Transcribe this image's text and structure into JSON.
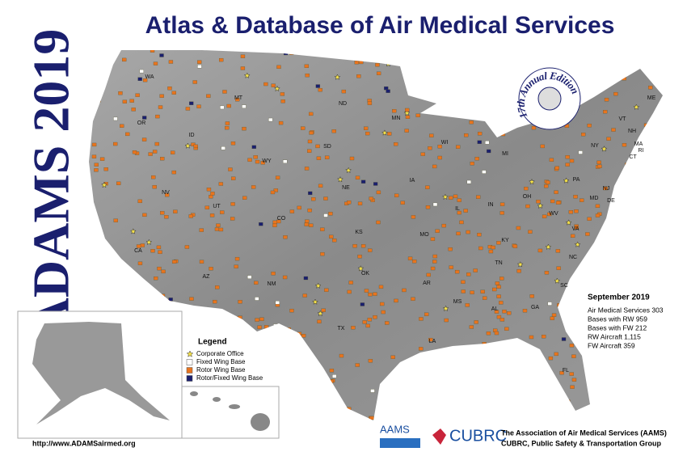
{
  "header": {
    "title": "Atlas & Database of Air Medical Services",
    "side_title": "ADAMS 2019",
    "badge": "17th Annual Edition"
  },
  "states": [
    "WA",
    "OR",
    "ID",
    "MT",
    "WY",
    "ND",
    "SD",
    "MN",
    "WI",
    "MI",
    "NV",
    "UT",
    "CO",
    "NE",
    "IA",
    "IL",
    "IN",
    "OH",
    "PA",
    "NY",
    "VT",
    "NH",
    "ME",
    "MA",
    "CT",
    "RI",
    "NJ",
    "DE",
    "MD",
    "WV",
    "VA",
    "KY",
    "TN",
    "NC",
    "SC",
    "GA",
    "AL",
    "MS",
    "AR",
    "LA",
    "TX",
    "OK",
    "KS",
    "MO",
    "NM",
    "AZ",
    "CA",
    "FL"
  ],
  "stats": {
    "heading": "September 2019",
    "rows": [
      "Air Medical Services 303",
      "Bases with RW  959",
      "Bases with FW  212",
      "RW Aircraft  1,115",
      "FW Aircraft  359"
    ]
  },
  "legend": {
    "title": "Legend",
    "items": [
      "Corporate Office",
      "Fixed Wing Base",
      "Rotor Wing Base",
      "Rotor/Fixed Wing Base"
    ]
  },
  "footer": {
    "url": "http://www.ADAMSairmed.org",
    "logo_aams": "AAMS",
    "logo_cubrc": "CUBRC",
    "org_line1": "The Association of Air Medical Services (AAMS)",
    "org_line2": "CUBRC, Public Safety & Transportation Group"
  }
}
